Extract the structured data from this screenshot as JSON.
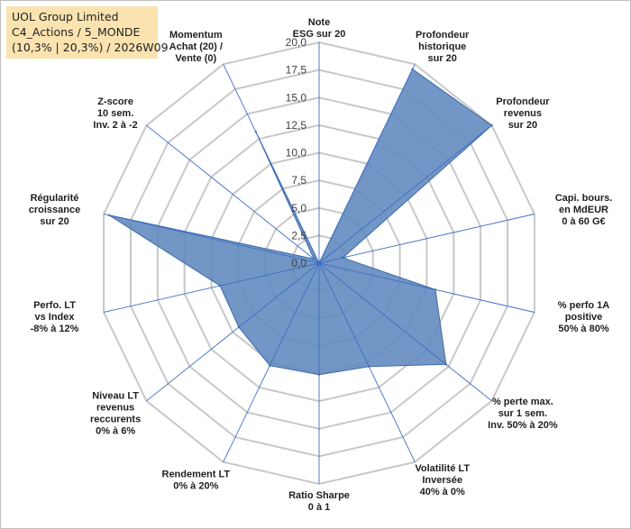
{
  "header": {
    "line1": "UOL Group Limited",
    "line2": "C4_Actions / 5_MONDE",
    "line3": "(10,3% | 20,3%) / 2026W09"
  },
  "chart_data": {
    "type": "radar",
    "rmax": 20,
    "ticks": [
      "0,0",
      "2,5",
      "5,0",
      "7,5",
      "10,0",
      "12,5",
      "15,0",
      "17,5",
      "20,0"
    ],
    "axes": [
      [
        "Note",
        "ESG sur 20"
      ],
      [
        "Profondeur",
        "historique",
        "sur 20"
      ],
      [
        "Profondeur",
        "revenus",
        "sur 20"
      ],
      [
        "Capi. bours.",
        "en MdEUR",
        "0 à 60 G€"
      ],
      [
        "% perfo 1A",
        "positive",
        "50% à 80%"
      ],
      [
        "% perte max.",
        "sur 1 sem.",
        "Inv. 50% à 20%"
      ],
      [
        "Volatilité LT",
        "Inversée",
        "40% à 0%"
      ],
      [
        "Ratio Sharpe",
        "0 à 1"
      ],
      [
        "Rendement LT",
        "0% à 20%"
      ],
      [
        "Niveau LT",
        "revenus",
        "reccurents",
        "0% à 6%"
      ],
      [
        "Perfo. LT",
        "vs Index",
        "-8% à 12%"
      ],
      [
        "Régularité",
        "croissance",
        "sur 20"
      ],
      [
        "Z-score",
        "10 sem.",
        "Inv. 2 à -2"
      ],
      [
        "Momentum",
        "Achat (20) /",
        "Vente (0)"
      ]
    ],
    "values": [
      0,
      19.5,
      20.0,
      2.2,
      10.8,
      14.7,
      10.4,
      10.1,
      10.3,
      9.3,
      9.2,
      19.5,
      0.6,
      13.2
    ],
    "fill_color": "#5f87bd",
    "line_color": "#3d6aa8",
    "grid_color": "#c8c8c8",
    "spoke_color": "#3d6fc4",
    "grid": true
  }
}
